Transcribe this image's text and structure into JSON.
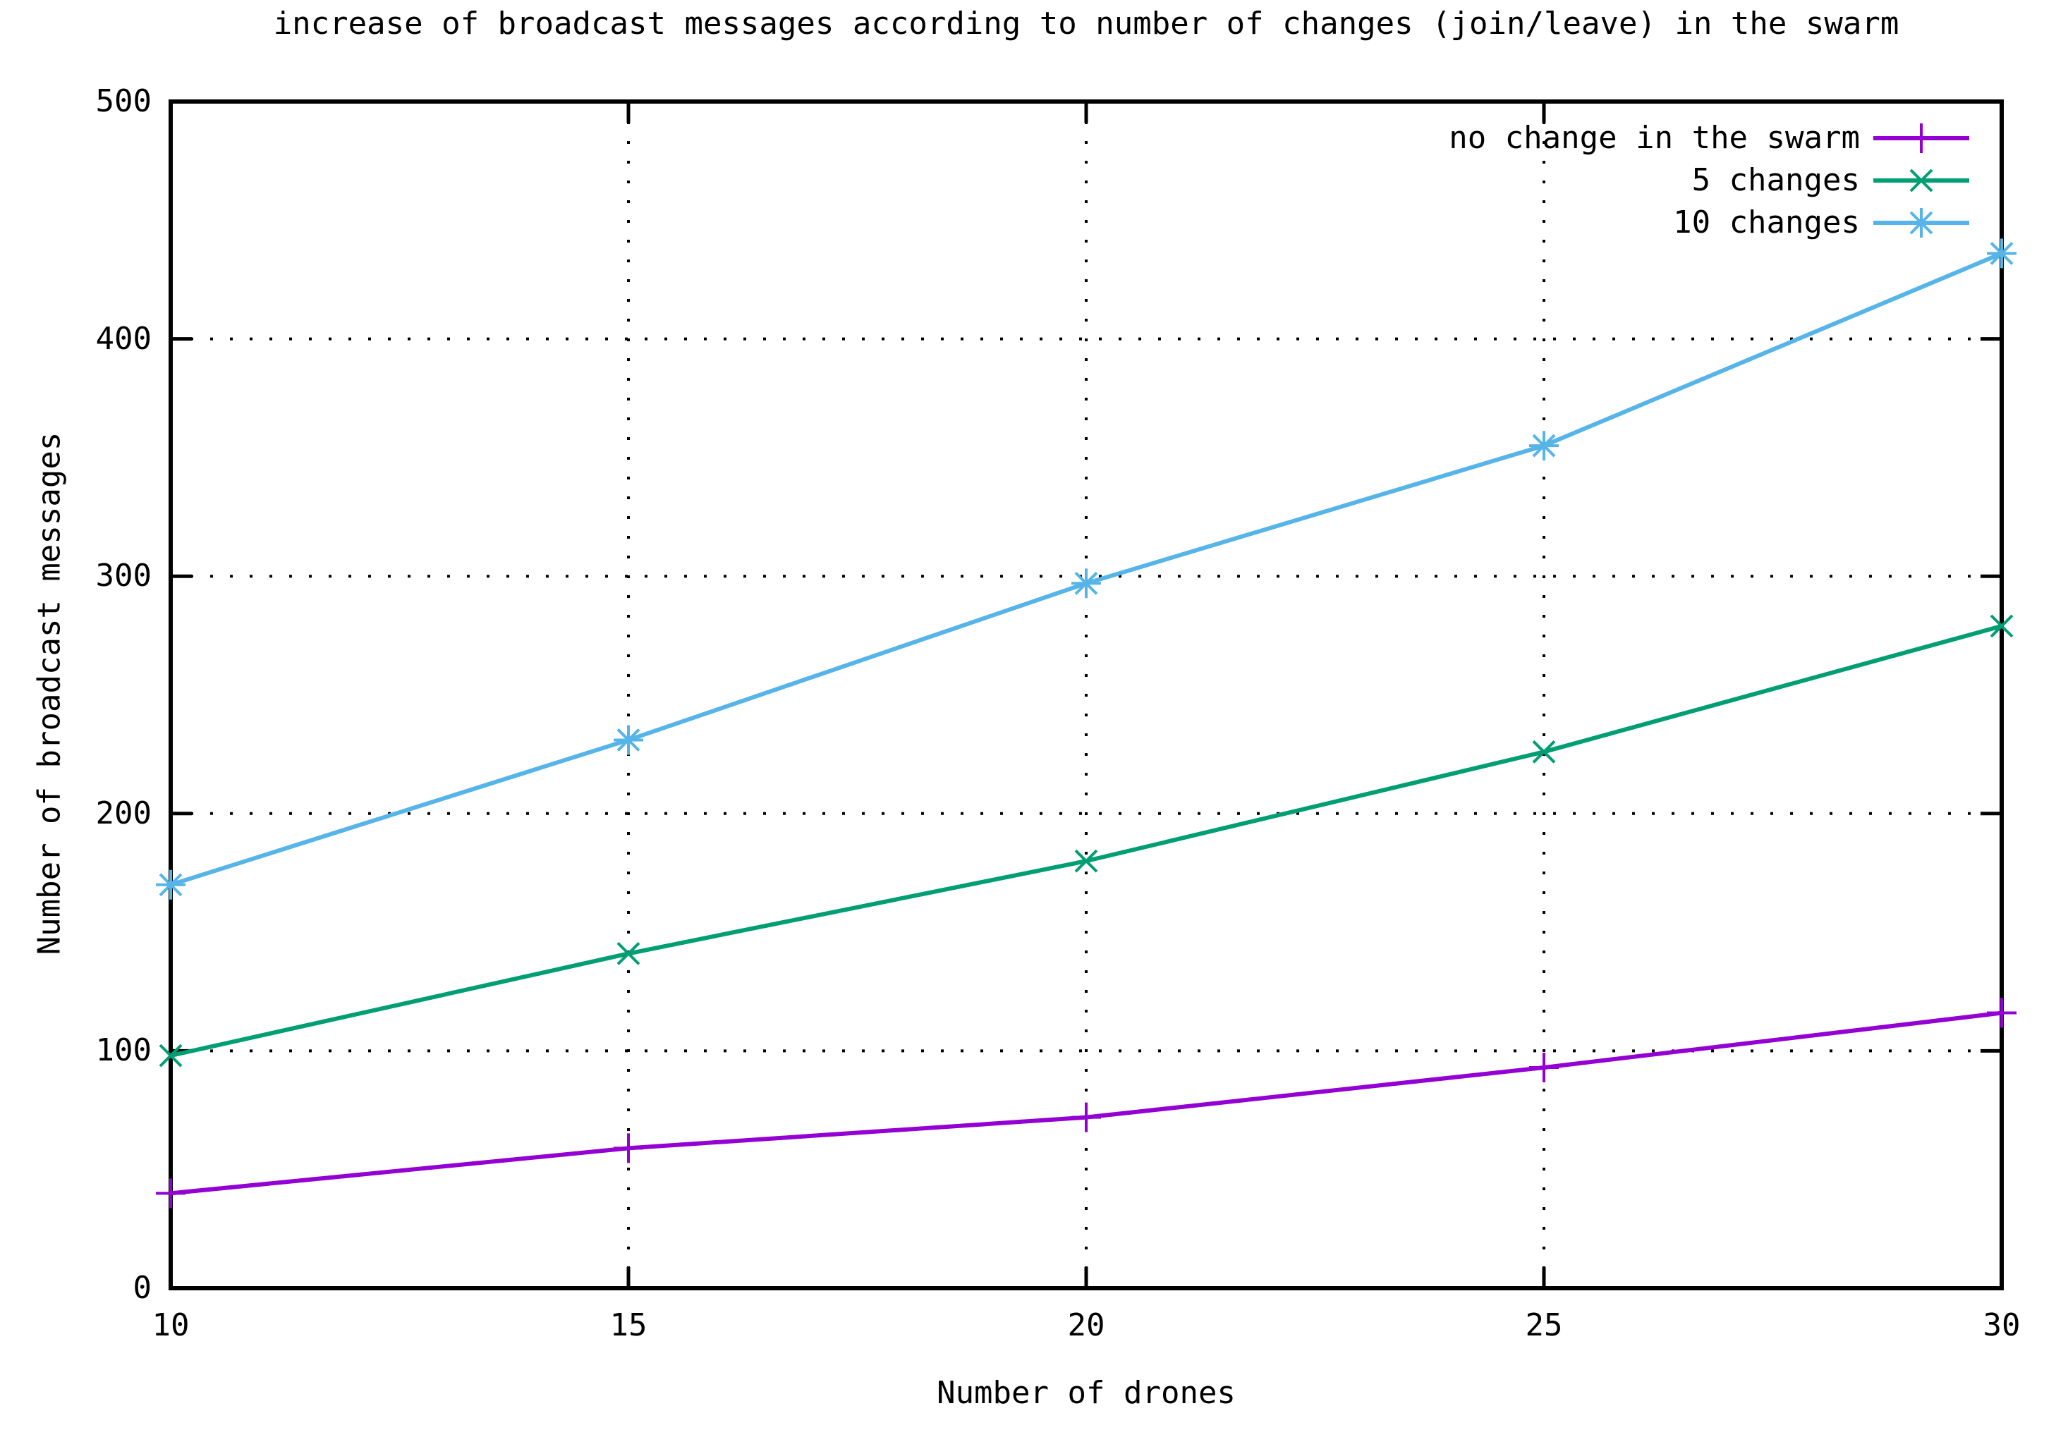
{
  "title": "increase of broadcast messages according to number of changes (join/leave) in the swarm",
  "chart_data": {
    "type": "line",
    "title": "increase of broadcast messages according to number of changes (join/leave) in the swarm",
    "xlabel": "Number of drones",
    "ylabel": "Number of broadcast messages",
    "x": [
      10,
      15,
      20,
      25,
      30
    ],
    "xlim": [
      10,
      30
    ],
    "ylim": [
      0,
      500
    ],
    "xticks": [
      "10",
      "15",
      "20",
      "25",
      "30"
    ],
    "yticks": [
      "0",
      "100",
      "200",
      "300",
      "400",
      "500"
    ],
    "grid": true,
    "grid_style": "dotted-black",
    "legend_position": "top-right-inside",
    "series": [
      {
        "name": "no change in the swarm",
        "color": "#9400d3",
        "marker": "plus",
        "values": [
          40,
          59,
          72,
          93,
          116
        ]
      },
      {
        "name": "5 changes",
        "color": "#009e73",
        "marker": "cross",
        "values": [
          98,
          141,
          180,
          226,
          279
        ]
      },
      {
        "name": "10 changes",
        "color": "#56b4e9",
        "marker": "star",
        "values": [
          170,
          231,
          297,
          355,
          436
        ]
      }
    ]
  },
  "colors": {
    "background": "#ffffff",
    "axis": "#000000",
    "series_no_change": "#9400d3",
    "series_5_changes": "#009e73",
    "series_10_changes": "#56b4e9"
  }
}
